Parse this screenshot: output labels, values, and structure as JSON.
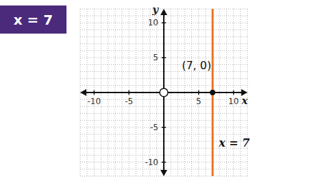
{
  "chart_data": {
    "type": "line",
    "title": "x = 7",
    "xlabel": "x",
    "ylabel": "y",
    "series": [
      {
        "name": "x = 7",
        "color": "#e8731f",
        "x": 7
      }
    ],
    "points": [
      {
        "x": 7,
        "y": 0,
        "label": "(7, 0)"
      }
    ],
    "xlim": [
      -12,
      12
    ],
    "ylim": [
      -12,
      12
    ],
    "xticks": [
      -10,
      -5,
      5,
      10
    ],
    "yticks": [
      -10,
      -5,
      5,
      10
    ],
    "grid": true
  }
}
